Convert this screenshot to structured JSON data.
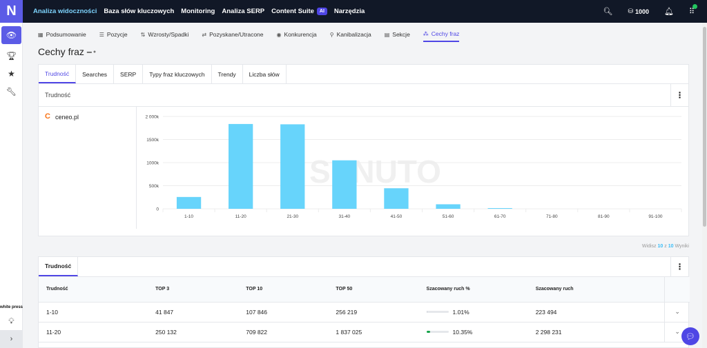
{
  "logo": "N",
  "topnav": [
    {
      "label": "Analiza widoczności",
      "active": true
    },
    {
      "label": "Baza słów kluczowych",
      "active": false
    },
    {
      "label": "Monitoring",
      "active": false
    },
    {
      "label": "Analiza SERP",
      "active": false
    },
    {
      "label": "Content Suite",
      "active": false,
      "badge": "AI"
    },
    {
      "label": "Narzędzia",
      "active": false
    }
  ],
  "topright": {
    "credits": "1000"
  },
  "sidebar": {
    "items": [
      "eye-icon",
      "trophy-icon",
      "star-icon",
      "wrench-icon"
    ],
    "brand": "white press",
    "expand": "›"
  },
  "subtabs": [
    {
      "label": "Podsumowanie",
      "icon": "▦"
    },
    {
      "label": "Pozycje",
      "icon": "☰"
    },
    {
      "label": "Wzrosty/Spadki",
      "icon": "⇅"
    },
    {
      "label": "Pozyskane/Utracone",
      "icon": "⇄"
    },
    {
      "label": "Konkurencja",
      "icon": "◉"
    },
    {
      "label": "Kanibalizacja",
      "icon": "⚲"
    },
    {
      "label": "Sekcje",
      "icon": "▤"
    },
    {
      "label": "Cechy fraz",
      "icon": "⁂",
      "active": true
    }
  ],
  "page": {
    "title": "Cechy fraz"
  },
  "tabs": [
    {
      "label": "Trudność",
      "active": true
    },
    {
      "label": "Searches"
    },
    {
      "label": "SERP"
    },
    {
      "label": "Typy fraz kluczowych"
    },
    {
      "label": "Trendy"
    },
    {
      "label": "Liczba słów"
    }
  ],
  "section": {
    "title": "Trudność"
  },
  "domain": {
    "name": "ceneo.pl"
  },
  "watermark": "SENUTO",
  "chart_data": {
    "type": "bar",
    "categories": [
      "1-10",
      "11-20",
      "21-30",
      "31-40",
      "41-50",
      "51-60",
      "61-70",
      "71-80",
      "81-90",
      "91-100"
    ],
    "values": [
      256219,
      1837025,
      1830000,
      1050000,
      445000,
      98000,
      15000,
      0,
      0,
      0
    ],
    "yticks": [
      "0",
      "500k",
      "1000k",
      "1500k",
      "2 000k"
    ],
    "ylim": [
      0,
      2000000
    ],
    "grid": true,
    "color": "#67d4fb"
  },
  "results": {
    "prefix": "Widisz",
    "shown": "10",
    "sep": "z",
    "total": "10",
    "suffix": "Wyniki"
  },
  "table": {
    "tab": "Trudność",
    "columns": [
      "Trudność",
      "TOP 3",
      "TOP 10",
      "TOP 50",
      "Szacowany ruch %",
      "Szacowany ruch"
    ],
    "rows": [
      {
        "range": "1-10",
        "top3": "41 847",
        "top10": "107 846",
        "top50": "256 219",
        "pct": "1.01%",
        "pct_value": 1.01,
        "traffic": "223 494"
      },
      {
        "range": "11-20",
        "top3": "250 132",
        "top10": "709 822",
        "top50": "1 837 025",
        "pct": "10.35%",
        "pct_value": 10.35,
        "traffic": "2 298 231"
      }
    ]
  }
}
